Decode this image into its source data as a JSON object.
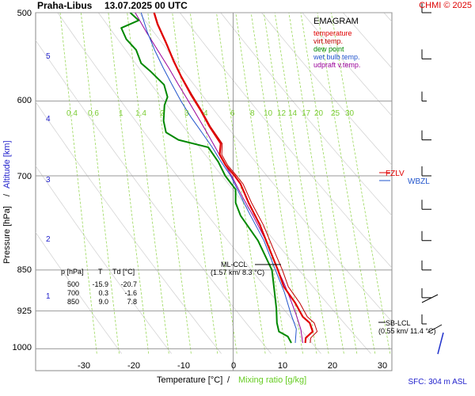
{
  "header": {
    "station": "Praha-Libus",
    "datetime": "13.07.2025 00 UTC",
    "credit": "CHMI © 2025"
  },
  "legend": {
    "title": "EMAGRAM",
    "items": [
      {
        "label": "temperature",
        "color": "#e00000"
      },
      {
        "label": "virt.temp.",
        "color": "#c00000"
      },
      {
        "label": "dew point",
        "color": "#008800"
      },
      {
        "label": "wet bulb temp.",
        "color": "#2255cc"
      },
      {
        "label": "udpraft v.temp.",
        "color": "#990099"
      }
    ]
  },
  "axes": {
    "ylabel_pressure": "Pressure [hPa]",
    "ylabel_separator": "/",
    "ylabel_altitude": "Altitude [km]",
    "xlabel_temperature": "Temperature [°C]",
    "xlabel_separator": "/",
    "xlabel_mixing": "Mixing ratio [g/kg]",
    "pressure_ticks": [
      "500",
      "600",
      "700",
      "850",
      "925",
      "1000"
    ],
    "temperature_ticks": [
      "-30",
      "-20",
      "-10",
      "0",
      "10",
      "20",
      "30"
    ],
    "altitude_ticks": [
      "1",
      "2",
      "3",
      "4",
      "5"
    ],
    "mixing_ratio_labels": [
      "0.4",
      "0.6",
      "1",
      "1.4",
      "2",
      "3",
      "4",
      "6",
      "8",
      "10",
      "12",
      "14",
      "17",
      "20",
      "25",
      "30"
    ]
  },
  "levels": {
    "fzl": "FZLV",
    "wbzl": "WBZL"
  },
  "ccl": {
    "ml_label": "ML-CCL",
    "ml_value": "(1.57 km/ 8.3 °C)",
    "sb_label": "SB-LCL",
    "sb_value": "(0.55 km/ 11.4 °C)"
  },
  "table": {
    "headers": [
      "p [hPa]",
      "T",
      "Td [°C]"
    ],
    "rows": [
      [
        "500",
        "-15.9",
        "-20.7"
      ],
      [
        "700",
        "0.3",
        "-1.6"
      ],
      [
        "850",
        "9.0",
        "7.8"
      ]
    ]
  },
  "footer": {
    "sfc": "SFC: 304 m ASL"
  },
  "chart_data": {
    "type": "line",
    "x_unit": "°C",
    "y_unit": "hPa",
    "xlim": [
      -37,
      33
    ],
    "ylim": [
      1010,
      500
    ],
    "y_scale": "log",
    "series": [
      {
        "name": "temperature",
        "color": "#e00000",
        "x_key": "T",
        "points": [
          [
            14.5,
            988
          ],
          [
            14.6,
            978
          ],
          [
            16.0,
            965
          ],
          [
            15.4,
            948
          ],
          [
            14.0,
            936
          ],
          [
            12.5,
            910
          ],
          [
            10.2,
            880
          ],
          [
            9.0,
            850
          ],
          [
            7.2,
            812
          ],
          [
            5.4,
            775
          ],
          [
            3.1,
            740
          ],
          [
            1.5,
            712
          ],
          [
            0.3,
            700
          ],
          [
            -1.5,
            685
          ],
          [
            -2.7,
            670
          ],
          [
            -2.5,
            655
          ],
          [
            -4.8,
            632
          ],
          [
            -6.5,
            612
          ],
          [
            -8.5,
            592
          ],
          [
            -10.5,
            570
          ],
          [
            -12.0,
            552
          ],
          [
            -13.5,
            532
          ],
          [
            -15.2,
            512
          ],
          [
            -15.9,
            500
          ]
        ]
      },
      {
        "name": "virt.temp.",
        "color": "#c00000",
        "x_key": "Tv",
        "points": [
          [
            15.5,
            988
          ],
          [
            15.6,
            978
          ],
          [
            16.9,
            965
          ],
          [
            16.3,
            948
          ],
          [
            14.9,
            936
          ],
          [
            13.4,
            910
          ],
          [
            11.1,
            880
          ],
          [
            9.9,
            850
          ],
          [
            8.0,
            812
          ],
          [
            6.1,
            775
          ],
          [
            3.7,
            740
          ],
          [
            2.0,
            712
          ],
          [
            0.7,
            700
          ],
          [
            -1.1,
            685
          ],
          [
            -2.3,
            670
          ],
          [
            -2.2,
            655
          ],
          [
            -4.6,
            632
          ],
          [
            -6.3,
            612
          ],
          [
            -8.3,
            592
          ],
          [
            -10.4,
            570
          ],
          [
            -11.9,
            552
          ],
          [
            -13.4,
            532
          ],
          [
            -15.1,
            512
          ],
          [
            -15.8,
            500
          ]
        ]
      },
      {
        "name": "dew point",
        "color": "#008800",
        "x_key": "Td",
        "points": [
          [
            11.7,
            988
          ],
          [
            11.0,
            975
          ],
          [
            9.2,
            965
          ],
          [
            8.8,
            948
          ],
          [
            8.7,
            920
          ],
          [
            8.2,
            880
          ],
          [
            7.8,
            850
          ],
          [
            5.0,
            800
          ],
          [
            1.5,
            760
          ],
          [
            0.5,
            740
          ],
          [
            0.5,
            720
          ],
          [
            -1.6,
            700
          ],
          [
            -3.0,
            680
          ],
          [
            -5.0,
            660
          ],
          [
            -11.0,
            650
          ],
          [
            -13.5,
            640
          ],
          [
            -14.0,
            625
          ],
          [
            -13.8,
            605
          ],
          [
            -13.2,
            595
          ],
          [
            -13.9,
            580
          ],
          [
            -16.5,
            565
          ],
          [
            -18.5,
            555
          ],
          [
            -19.5,
            540
          ],
          [
            -21.5,
            528
          ],
          [
            -22.5,
            516
          ],
          [
            -19.0,
            508
          ],
          [
            -20.7,
            500
          ]
        ]
      },
      {
        "name": "wet bulb temp.",
        "color": "#2255cc",
        "x_key": "Tw",
        "points": [
          [
            12.5,
            988
          ],
          [
            12.7,
            960
          ],
          [
            11.6,
            930
          ],
          [
            10.3,
            890
          ],
          [
            8.5,
            850
          ],
          [
            6.2,
            800
          ],
          [
            3.5,
            760
          ],
          [
            1.5,
            730
          ],
          [
            -0.5,
            700
          ],
          [
            -2.4,
            680
          ],
          [
            -4.2,
            660
          ],
          [
            -6.3,
            640
          ],
          [
            -8.5,
            620
          ],
          [
            -10.5,
            600
          ],
          [
            -12.3,
            580
          ],
          [
            -14.1,
            560
          ],
          [
            -15.8,
            540
          ],
          [
            -17.3,
            520
          ],
          [
            -18.5,
            500
          ]
        ]
      },
      {
        "name": "udpraft v.temp.",
        "color": "#990099",
        "x_key": "Tp",
        "points": [
          [
            14.0,
            988
          ],
          [
            13.6,
            960
          ],
          [
            12.6,
            930
          ],
          [
            11.4,
            900
          ],
          [
            10.3,
            875
          ],
          [
            9.0,
            850
          ],
          [
            6.6,
            800
          ],
          [
            4.0,
            760
          ],
          [
            1.8,
            730
          ],
          [
            -0.3,
            700
          ],
          [
            -2.0,
            680
          ],
          [
            -3.6,
            660
          ],
          [
            -5.3,
            640
          ],
          [
            -7.1,
            620
          ],
          [
            -9.0,
            600
          ],
          [
            -11.0,
            580
          ],
          [
            -13.0,
            560
          ],
          [
            -15.2,
            540
          ],
          [
            -17.5,
            520
          ],
          [
            -19.7,
            500
          ]
        ]
      }
    ],
    "wind_barbs": [
      {
        "p": 500,
        "speed_kt": 10
      },
      {
        "p": 550,
        "speed_kt": 10
      },
      {
        "p": 600,
        "speed_kt": 5
      },
      {
        "p": 650,
        "speed_kt": 10
      },
      {
        "p": 700,
        "speed_kt": 10
      },
      {
        "p": 750,
        "speed_kt": 10
      },
      {
        "p": 800,
        "speed_kt": 10
      },
      {
        "p": 850,
        "speed_kt": 10
      },
      {
        "p": 900,
        "speed_kt": 10
      },
      {
        "p": 950,
        "speed_kt": 5
      }
    ]
  }
}
